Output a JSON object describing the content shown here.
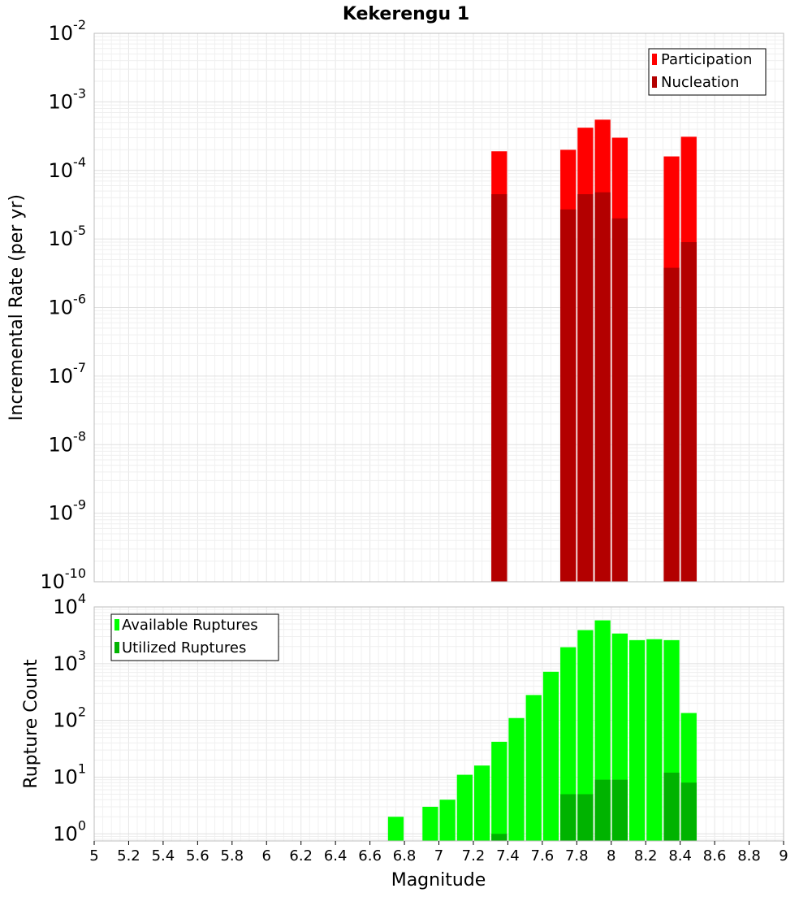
{
  "chart_data": [
    {
      "type": "bar",
      "title": "Kekerengu 1",
      "xlabel": "",
      "ylabel": "Incremental Rate (per yr)",
      "xlim": [
        5,
        9
      ],
      "ylim": [
        1e-10,
        0.01
      ],
      "yscale": "log",
      "y_tick_exponents": [
        -10,
        -9,
        -8,
        -7,
        -6,
        -5,
        -4,
        -3,
        -2
      ],
      "grid": true,
      "legend_position": "top-right",
      "bin_width": 0.1,
      "x": [
        7.35,
        7.75,
        7.85,
        7.95,
        8.05,
        8.35,
        8.45
      ],
      "series": [
        {
          "name": "Participation",
          "color": "#ff0000",
          "values": [
            0.00019,
            0.0002,
            0.00042,
            0.00055,
            0.0003,
            0.00016,
            0.00031
          ]
        },
        {
          "name": "Nucleation",
          "color": "#b30000",
          "values": [
            4.5e-05,
            2.7e-05,
            4.5e-05,
            4.8e-05,
            2e-05,
            3.8e-06,
            9e-06
          ]
        }
      ]
    },
    {
      "type": "bar",
      "title": "",
      "xlabel": "Magnitude",
      "ylabel": "Rupture Count",
      "xlim": [
        5,
        9
      ],
      "x_ticks": [
        "5",
        "5.2",
        "5.4",
        "5.6",
        "5.8",
        "6",
        "6.2",
        "6.4",
        "6.6",
        "6.8",
        "7",
        "7.2",
        "7.4",
        "7.6",
        "7.8",
        "8",
        "8.2",
        "8.4",
        "8.6",
        "8.8",
        "9"
      ],
      "ylim": [
        0.75,
        10000.0
      ],
      "yscale": "log",
      "y_tick_exponents": [
        0,
        1,
        2,
        3,
        4
      ],
      "grid": true,
      "legend_position": "top-left",
      "bin_width": 0.1,
      "series": [
        {
          "name": "Available Ruptures",
          "color": "#00ff00",
          "x": [
            6.75,
            6.95,
            7.05,
            7.15,
            7.25,
            7.35,
            7.45,
            7.55,
            7.65,
            7.75,
            7.85,
            7.95,
            8.05,
            8.15,
            8.25,
            8.35,
            8.45
          ],
          "values": [
            2,
            3,
            4,
            11,
            16,
            42,
            110,
            280,
            720,
            1950,
            3900,
            5800,
            3400,
            2600,
            2700,
            2600,
            135
          ]
        },
        {
          "name": "Utilized Ruptures",
          "color": "#00b300",
          "x": [
            7.35,
            7.75,
            7.85,
            7.95,
            8.05,
            8.35,
            8.45
          ],
          "values": [
            1,
            5,
            5,
            9,
            9,
            12,
            8
          ]
        }
      ]
    }
  ]
}
